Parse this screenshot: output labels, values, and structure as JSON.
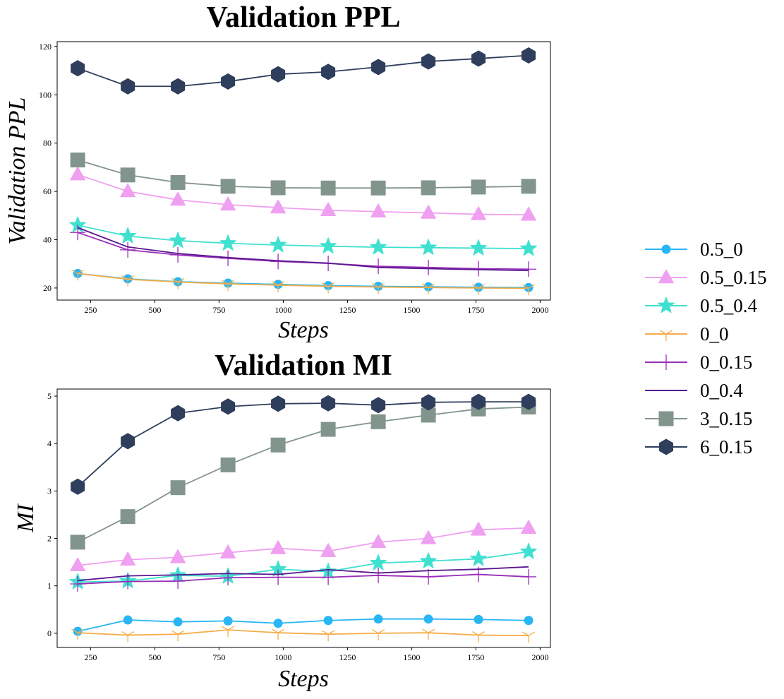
{
  "chart_data": [
    {
      "type": "line",
      "title": "Validation PPL",
      "xlabel": "Steps",
      "ylabel": "Validation PPL",
      "xlim": [
        120,
        2040
      ],
      "ylim": [
        15,
        122
      ],
      "xticks": [
        250,
        500,
        750,
        1000,
        1250,
        1500,
        1750,
        2000
      ],
      "yticks": [
        20,
        40,
        60,
        80,
        100,
        120
      ],
      "x": [
        200,
        395,
        590,
        785,
        980,
        1175,
        1370,
        1565,
        1760,
        1955
      ],
      "series": [
        {
          "name": "0.5_0",
          "values": [
            26,
            23.8,
            22.6,
            22,
            21.5,
            21,
            20.7,
            20.5,
            20.3,
            20.2
          ]
        },
        {
          "name": "0.5_0.15",
          "values": [
            67,
            60,
            56.5,
            54.5,
            53.3,
            52.2,
            51.6,
            51.1,
            50.5,
            50.3
          ]
        },
        {
          "name": "0.5_0.4",
          "values": [
            46,
            41.5,
            39.6,
            38.5,
            37.8,
            37.3,
            36.9,
            36.7,
            36.5,
            36.3
          ]
        },
        {
          "name": "0_0",
          "values": [
            26,
            23.6,
            22.5,
            21.7,
            21.2,
            20.7,
            20.4,
            20.2,
            20,
            19.9
          ]
        },
        {
          "name": "0_0.15",
          "values": [
            43,
            35.8,
            33.7,
            32.3,
            31,
            30.2,
            29,
            28.5,
            28,
            27.8
          ]
        },
        {
          "name": "0_0.4",
          "values": [
            45,
            37,
            34.3,
            32.6,
            31.3,
            30.3,
            28.5,
            28,
            27.6,
            27.2
          ]
        },
        {
          "name": "3_0.15",
          "values": [
            73,
            66.8,
            63.7,
            62.1,
            61.5,
            61.4,
            61.4,
            61.5,
            61.8,
            62.1
          ]
        },
        {
          "name": "6_0.15",
          "values": [
            111,
            103.5,
            103.5,
            105.5,
            108.5,
            109.5,
            111.5,
            113.8,
            115,
            116.3
          ]
        }
      ]
    },
    {
      "type": "line",
      "title": "Validation MI",
      "xlabel": "Steps",
      "ylabel": "MI",
      "xlim": [
        120,
        2040
      ],
      "ylim": [
        -0.3,
        5.15
      ],
      "xticks": [
        250,
        500,
        750,
        1000,
        1250,
        1500,
        1750,
        2000
      ],
      "yticks": [
        0,
        1,
        2,
        3,
        4,
        5
      ],
      "x": [
        200,
        395,
        590,
        785,
        980,
        1175,
        1370,
        1565,
        1760,
        1955
      ],
      "series": [
        {
          "name": "0.5_0",
          "values": [
            0.04,
            0.28,
            0.24,
            0.26,
            0.21,
            0.27,
            0.3,
            0.3,
            0.29,
            0.27
          ]
        },
        {
          "name": "0.5_0.15",
          "values": [
            1.43,
            1.55,
            1.6,
            1.7,
            1.79,
            1.73,
            1.92,
            2.0,
            2.18,
            2.22
          ]
        },
        {
          "name": "0.5_0.4",
          "values": [
            1.08,
            1.1,
            1.22,
            1.2,
            1.35,
            1.3,
            1.48,
            1.52,
            1.57,
            1.72
          ]
        },
        {
          "name": "0_0",
          "values": [
            0.01,
            -0.04,
            -0.02,
            0.07,
            0.01,
            -0.02,
            0.0,
            0.01,
            -0.04,
            -0.05
          ]
        },
        {
          "name": "0_0.15",
          "values": [
            1.04,
            1.09,
            1.1,
            1.17,
            1.18,
            1.18,
            1.22,
            1.19,
            1.24,
            1.19
          ]
        },
        {
          "name": "0_0.4",
          "values": [
            1.11,
            1.21,
            1.23,
            1.26,
            1.24,
            1.34,
            1.27,
            1.32,
            1.35,
            1.4
          ]
        },
        {
          "name": "3_0.15",
          "values": [
            1.92,
            2.46,
            3.07,
            3.55,
            3.97,
            4.3,
            4.46,
            4.6,
            4.73,
            4.77
          ]
        },
        {
          "name": "6_0.15",
          "values": [
            3.09,
            4.05,
            4.64,
            4.78,
            4.84,
            4.85,
            4.81,
            4.87,
            4.88,
            4.88
          ]
        }
      ]
    }
  ],
  "legend": {
    "placement": "right-center",
    "entries": [
      {
        "name": "0.5_0",
        "color": "#29b6f6",
        "marker": "circle"
      },
      {
        "name": "0.5_0.15",
        "color": "#f0a0f0",
        "marker": "triangle"
      },
      {
        "name": "0.5_0.4",
        "color": "#40e0d0",
        "marker": "star"
      },
      {
        "name": "0_0",
        "color": "#f5ad4a",
        "marker": "tri-down"
      },
      {
        "name": "0_0.15",
        "color": "#9a2cb8",
        "marker": "plus"
      },
      {
        "name": "0_0.4",
        "color": "#5a1890",
        "marker": "none"
      },
      {
        "name": "3_0.15",
        "color": "#82958c",
        "marker": "square"
      },
      {
        "name": "6_0.15",
        "color": "#2e3e5c",
        "marker": "hexagon"
      }
    ]
  }
}
